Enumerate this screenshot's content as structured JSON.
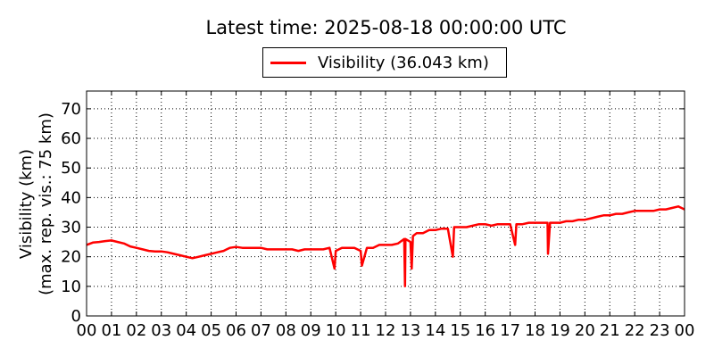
{
  "header": {
    "title": "Latest time: 2025-08-18 00:00:00 UTC"
  },
  "legend": {
    "label": "Visibility (36.043 km)",
    "color": "#ff0000"
  },
  "chart_data": {
    "type": "line",
    "title": "Latest time: 2025-08-18 00:00:00 UTC",
    "ylabel_line1": "Visibility (km)",
    "ylabel_line2": "(max. rep. vis.: 75 km)",
    "xlabel": "",
    "xlim": [
      0,
      24
    ],
    "ylim": [
      0,
      76
    ],
    "x_ticks": [
      "00",
      "01",
      "02",
      "03",
      "04",
      "05",
      "06",
      "07",
      "08",
      "09",
      "10",
      "11",
      "12",
      "13",
      "14",
      "15",
      "16",
      "17",
      "18",
      "19",
      "20",
      "21",
      "22",
      "23",
      "00"
    ],
    "y_ticks": [
      0,
      10,
      20,
      30,
      40,
      50,
      60,
      70
    ],
    "grid": true,
    "legend_position": "top-center",
    "series": [
      {
        "name": "Visibility (36.043 km)",
        "color": "#ff0000",
        "x": [
          0,
          0.25,
          0.5,
          0.75,
          1,
          1.25,
          1.5,
          1.75,
          2,
          2.25,
          2.5,
          2.75,
          3,
          3.25,
          3.5,
          3.75,
          4,
          4.25,
          4.5,
          4.75,
          5,
          5.25,
          5.5,
          5.75,
          6,
          6.25,
          6.5,
          6.75,
          7,
          7.25,
          7.5,
          7.75,
          8,
          8.25,
          8.5,
          8.75,
          9,
          9.25,
          9.5,
          9.75,
          9.95,
          10,
          10.25,
          10.5,
          10.75,
          11,
          11.05,
          11.25,
          11.5,
          11.75,
          12,
          12.25,
          12.5,
          12.75,
          12.78,
          12.8,
          13,
          13.05,
          13.1,
          13.25,
          13.5,
          13.75,
          14,
          14.25,
          14.5,
          14.7,
          14.75,
          15,
          15.25,
          15.5,
          15.75,
          16,
          16.25,
          16.5,
          16.75,
          17,
          17.2,
          17.25,
          17.5,
          17.75,
          18,
          18.25,
          18.5,
          18.52,
          18.6,
          18.75,
          19,
          19.25,
          19.5,
          19.75,
          20,
          20.25,
          20.5,
          20.75,
          21,
          21.25,
          21.5,
          21.75,
          22,
          22.25,
          22.5,
          22.75,
          23,
          23.25,
          23.5,
          23.75,
          24
        ],
        "y": [
          24,
          24.8,
          25,
          25.3,
          25.5,
          25,
          24.5,
          23.5,
          23,
          22.5,
          22,
          21.8,
          21.8,
          21.5,
          21,
          20.5,
          20,
          19.5,
          20,
          20.5,
          21,
          21.5,
          22,
          23,
          23.3,
          23,
          23,
          23,
          23,
          22.5,
          22.5,
          22.5,
          22.5,
          22.5,
          22,
          22.5,
          22.5,
          22.5,
          22.5,
          23,
          16,
          22,
          23,
          23,
          23,
          22,
          17,
          23,
          23,
          24,
          24,
          24,
          24.5,
          26,
          10,
          26,
          25,
          16,
          27,
          28,
          28,
          29,
          29,
          29.5,
          29.5,
          20,
          30,
          30,
          30,
          30.5,
          31,
          31,
          30.5,
          31,
          31,
          31,
          24,
          31,
          31,
          31.5,
          31.5,
          31.5,
          31.5,
          21,
          31.5,
          31.5,
          31.5,
          32,
          32,
          32.5,
          32.5,
          33,
          33.5,
          34,
          34,
          34.5,
          34.5,
          35,
          35.5,
          35.5,
          35.5,
          35.5,
          36,
          36,
          36.5,
          37,
          36
        ]
      }
    ]
  }
}
